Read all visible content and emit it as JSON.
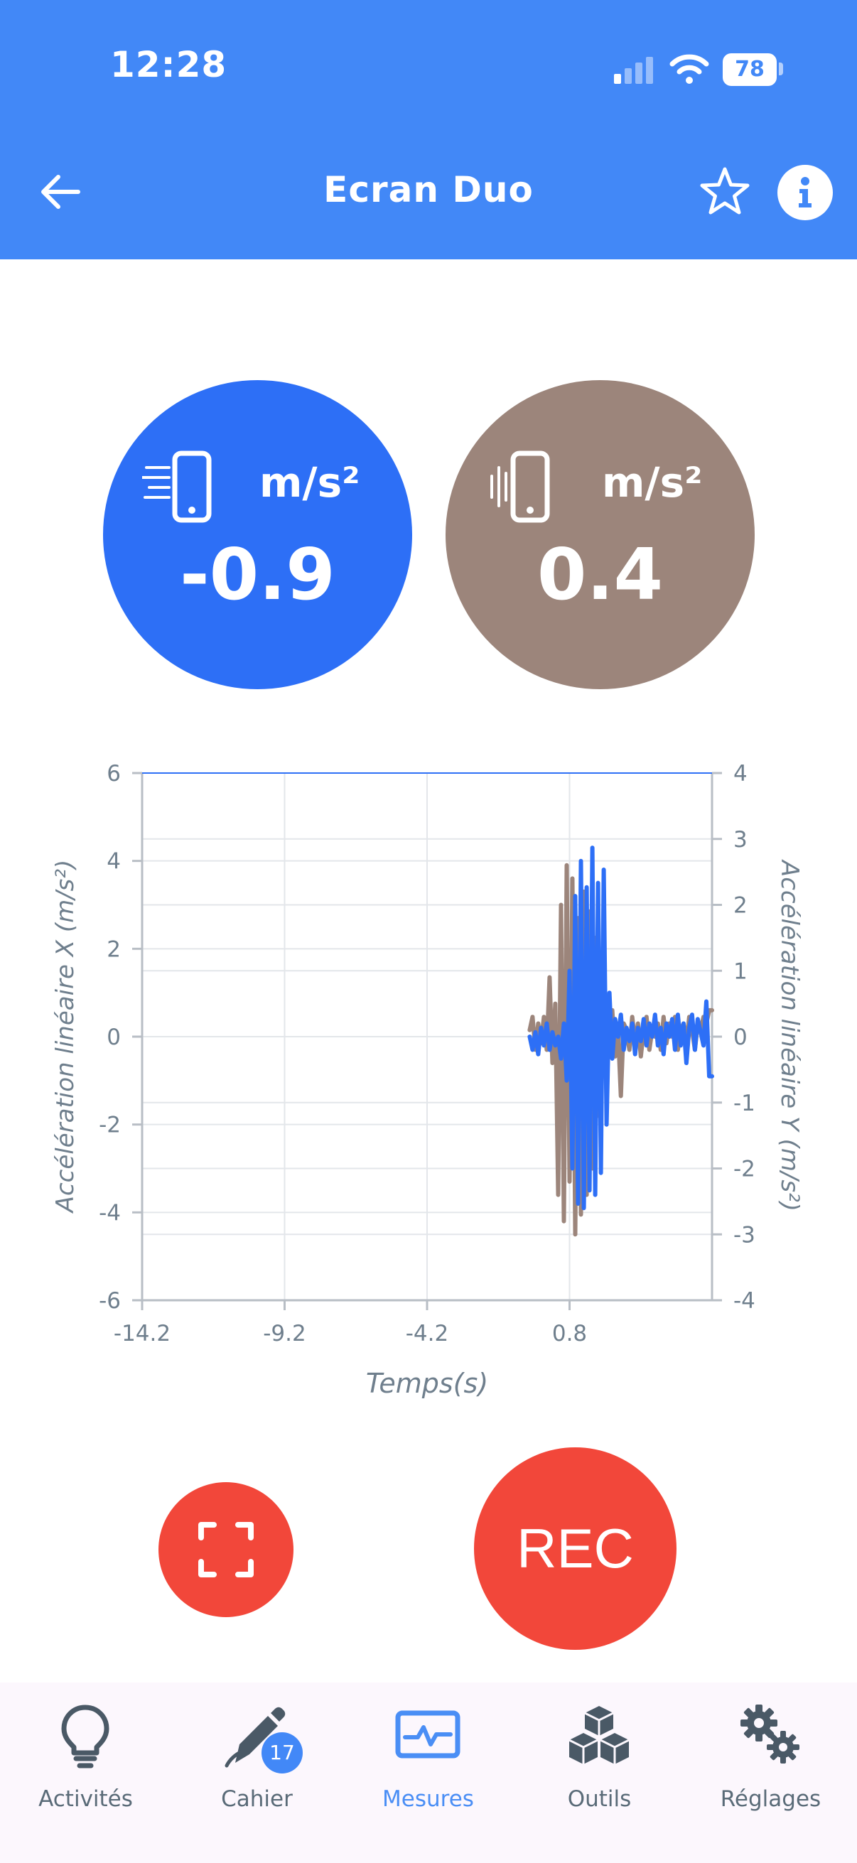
{
  "status": {
    "time": "12:28",
    "battery": "78"
  },
  "header": {
    "title": "Ecran Duo"
  },
  "gauges": [
    {
      "unit": "m/s²",
      "value": "-0.9",
      "color": "#2d6ff6"
    },
    {
      "unit": "m/s²",
      "value": "0.4",
      "color": "#9c857b"
    }
  ],
  "chart_data": {
    "type": "line",
    "xlabel": "Temps(s)",
    "ylabel_left": "Accélération linéaire X (m/s²)",
    "ylabel_right": "Accélération linéaire Y (m/s²)",
    "x_ticks": [
      "-14.2",
      "-9.2",
      "-4.2",
      "0.8"
    ],
    "x_range": [
      -14.2,
      5.8
    ],
    "y_left_ticks": [
      "6",
      "4",
      "2",
      "0",
      "-2",
      "-4",
      "-6"
    ],
    "y_left_range": [
      -6,
      6
    ],
    "y_right_ticks": [
      "4",
      "3",
      "2",
      "1",
      "0",
      "-1",
      "-2",
      "-3",
      "-4"
    ],
    "y_right_range": [
      -4,
      4
    ],
    "grid": true,
    "series": [
      {
        "axis": "left",
        "color": "#2d6ff6",
        "x": [
          -0.6,
          -0.5,
          -0.4,
          -0.3,
          -0.2,
          -0.1,
          0.0,
          0.1,
          0.2,
          0.3,
          0.4,
          0.5,
          0.6,
          0.7,
          0.8,
          0.9,
          1.0,
          1.1,
          1.2,
          1.3,
          1.4,
          1.5,
          1.6,
          1.7,
          1.8,
          1.9,
          2.0,
          2.1,
          2.2,
          2.3,
          2.4,
          2.5,
          2.6,
          2.7,
          2.8,
          2.9,
          3.0,
          3.1,
          3.2,
          3.3,
          3.4,
          3.5,
          3.6,
          3.7,
          3.8,
          3.9,
          4.0,
          4.1,
          4.2,
          4.3,
          4.4,
          4.5,
          4.6,
          4.7,
          4.8,
          4.9,
          5.0,
          5.1,
          5.2,
          5.3,
          5.4,
          5.5,
          5.6,
          5.7,
          5.8
        ],
        "y": [
          0,
          -0.3,
          0.1,
          -0.4,
          0.2,
          -0.2,
          0.3,
          -0.3,
          0.1,
          -0.2,
          0.0,
          -0.5,
          0.3,
          -1.0,
          1.5,
          -3.0,
          3.2,
          -3.8,
          4.0,
          -3.9,
          3.4,
          -3.5,
          4.3,
          -3.6,
          3.5,
          -3.1,
          3.8,
          -2.0,
          1.0,
          -0.5,
          0.4,
          0.0,
          0.5,
          -0.3,
          0.2,
          -0.1,
          0.3,
          -0.4,
          0.2,
          -0.1,
          0.4,
          -0.2,
          0.3,
          0.0,
          0.5,
          -0.2,
          0.2,
          -0.4,
          0.3,
          0.0,
          0.4,
          -0.3,
          0.5,
          -0.2,
          0.3,
          -0.6,
          0.2,
          0.5,
          -0.3,
          0.4,
          0.1,
          -0.2,
          0.8,
          -0.9,
          -0.9
        ]
      },
      {
        "axis": "right",
        "color": "#9c857b",
        "x": [
          -0.6,
          -0.5,
          -0.4,
          -0.3,
          -0.2,
          -0.1,
          0.0,
          0.1,
          0.2,
          0.3,
          0.4,
          0.5,
          0.6,
          0.7,
          0.8,
          0.9,
          1.0,
          1.1,
          1.2,
          1.3,
          1.4,
          1.5,
          1.6,
          1.7,
          1.8,
          1.9,
          2.0,
          2.1,
          2.2,
          2.3,
          2.4,
          2.5,
          2.6,
          2.7,
          2.8,
          2.9,
          3.0,
          3.1,
          3.2,
          3.3,
          3.4,
          3.5,
          3.6,
          3.7,
          3.8,
          3.9,
          4.0,
          4.1,
          4.2,
          4.3,
          4.4,
          4.5,
          4.6,
          4.7,
          4.8,
          4.9,
          5.0,
          5.1,
          5.2,
          5.3,
          5.4,
          5.5,
          5.6,
          5.7,
          5.8
        ],
        "y": [
          0.1,
          0.3,
          -0.2,
          0.2,
          -0.1,
          0.3,
          -0.2,
          0.9,
          -0.4,
          0.5,
          -2.4,
          2.0,
          -2.8,
          2.6,
          -2.2,
          2.4,
          -3.0,
          1.8,
          -2.7,
          2.2,
          -2.4,
          1.9,
          -2.0,
          1.5,
          -1.2,
          0.9,
          -0.5,
          0.3,
          -0.2,
          0.4,
          -0.3,
          0.1,
          -0.9,
          0.2,
          0.1,
          -0.2,
          0.3,
          -0.1,
          0.2,
          -0.3,
          0.1,
          0.3,
          -0.2,
          0.1,
          0.0,
          0.2,
          -0.2,
          0.3,
          -0.1,
          0.2,
          0.0,
          0.3,
          -0.2,
          0.1,
          0.2,
          -0.1,
          0.3,
          0.1,
          -0.2,
          0.2,
          0.1,
          0.3,
          0.2,
          0.4,
          0.4
        ]
      }
    ]
  },
  "controls": {
    "rec_label": "REC"
  },
  "nav": {
    "items": [
      {
        "label": "Activités",
        "icon": "lightbulb-icon"
      },
      {
        "label": "Cahier",
        "icon": "pencil-icon",
        "badge": "17"
      },
      {
        "label": "Mesures",
        "icon": "monitor-pulse-icon",
        "active": true
      },
      {
        "label": "Outils",
        "icon": "cubes-icon"
      },
      {
        "label": "Réglages",
        "icon": "gears-icon"
      }
    ]
  }
}
